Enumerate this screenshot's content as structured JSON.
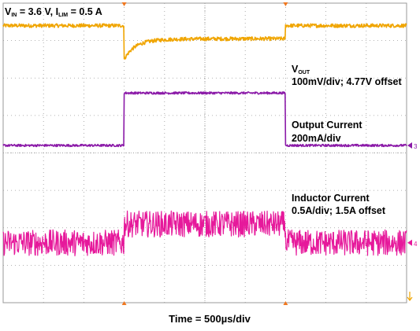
{
  "chart_data": {
    "type": "line",
    "header": {
      "parts": [
        {
          "t": "V",
          "sub": false
        },
        {
          "t": "IN",
          "sub": true
        },
        {
          "t": " = 3.6 V, I",
          "sub": false
        },
        {
          "t": "LIM",
          "sub": true
        },
        {
          "t": " = 0.5 A",
          "sub": false
        }
      ]
    },
    "xlabel": "Time = 500µs/div",
    "grid": true,
    "divisions": {
      "x": 10,
      "y": 8
    },
    "step_times_div": [
      3.0,
      7.0
    ],
    "series": [
      {
        "key": "vout",
        "color": "#f0a500",
        "label_main": "V",
        "label_sub": "OUT",
        "label_second": "100mV/div; 4.77V offset",
        "baseline_div": 7.4,
        "step_div": 7.4,
        "transient_dip_div": 0.9,
        "noise_div": 0.05
      },
      {
        "key": "iout",
        "color": "#8b1aa8",
        "label_main": "Output Current",
        "label_second": "200mA/div",
        "marker": "3",
        "baseline_div": 4.2,
        "step_div": 5.6,
        "noise_div": 0.03
      },
      {
        "key": "il",
        "color": "#e6199b",
        "label_main": "Inductor Current",
        "label_second": "0.5A/div; 1.5A offset",
        "marker": "4",
        "baseline_div": 1.6,
        "step_div": 2.1,
        "noise_div": 0.35
      }
    ]
  }
}
